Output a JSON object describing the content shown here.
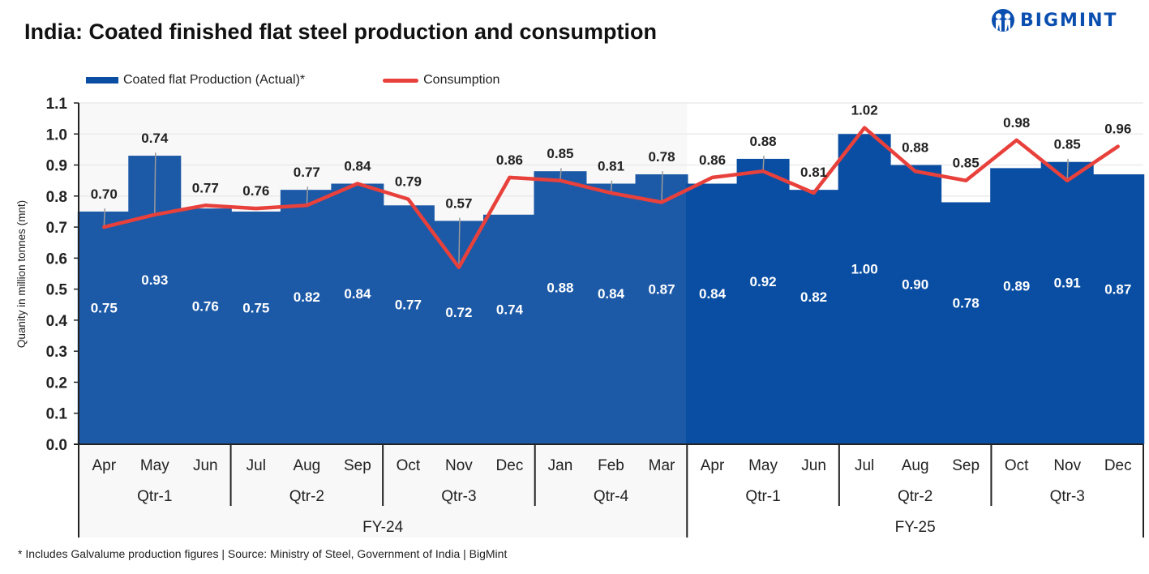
{
  "title": "India: Coated finished flat steel production and consumption",
  "logo": {
    "text": "BIGMINT",
    "icon": "bigmint-logo-icon"
  },
  "footnote": "* Includes Galvalume production figures | Source: Ministry of Steel, Government of India | BigMint",
  "colors": {
    "bar_fy24": "#1c59a7",
    "bar_fy25": "#0a4ea3",
    "line": "#e8413c",
    "fy24_bg": "#f8f8f8",
    "grid": "#ebebeb",
    "leader": "#9a9a9a"
  },
  "chart_data": {
    "type": "bar",
    "title": "India: Coated finished flat steel production and consumption",
    "xlabel": "",
    "ylabel": "Quanity in million tonnes (mnt)",
    "ylim": [
      0,
      1.1
    ],
    "yticks": [
      "0.0",
      "0.1",
      "0.2",
      "0.3",
      "0.4",
      "0.5",
      "0.6",
      "0.7",
      "0.8",
      "0.9",
      "1.0",
      "1.1"
    ],
    "grid": true,
    "legend_position": "top-left",
    "categories": [
      "Apr",
      "May",
      "Jun",
      "Jul",
      "Aug",
      "Sep",
      "Oct",
      "Nov",
      "Dec",
      "Jan",
      "Feb",
      "Mar",
      "Apr",
      "May",
      "Jun",
      "Jul",
      "Aug",
      "Sep",
      "Oct",
      "Nov",
      "Dec"
    ],
    "quarters": [
      {
        "label": "Qtr-1",
        "span": 3
      },
      {
        "label": "Qtr-2",
        "span": 3
      },
      {
        "label": "Qtr-3",
        "span": 3
      },
      {
        "label": "Qtr-4",
        "span": 3
      },
      {
        "label": "Qtr-1",
        "span": 3
      },
      {
        "label": "Qtr-2",
        "span": 3
      },
      {
        "label": "Qtr-3",
        "span": 3
      }
    ],
    "fiscal_years": [
      {
        "label": "FY-24",
        "span": 12
      },
      {
        "label": "FY-25",
        "span": 9
      }
    ],
    "series": [
      {
        "name": "Coated flat Production (Actual)*",
        "type": "bar",
        "values": [
          0.75,
          0.93,
          0.76,
          0.75,
          0.82,
          0.84,
          0.77,
          0.72,
          0.74,
          0.88,
          0.84,
          0.87,
          0.84,
          0.92,
          0.82,
          1.0,
          0.9,
          0.78,
          0.89,
          0.91,
          0.87
        ],
        "labels": [
          "0.75",
          "0.93",
          "0.76",
          "0.75",
          "0.82",
          "0.84",
          "0.77",
          "0.72",
          "0.74",
          "0.88",
          "0.84",
          "0.87",
          "0.84",
          "0.92",
          "0.82",
          "1.00",
          "0.90",
          "0.78",
          "0.89",
          "0.91",
          "0.87"
        ]
      },
      {
        "name": "Consumption",
        "type": "line",
        "values": [
          0.7,
          0.74,
          0.77,
          0.76,
          0.77,
          0.84,
          0.79,
          0.57,
          0.86,
          0.85,
          0.81,
          0.78,
          0.86,
          0.88,
          0.81,
          1.02,
          0.88,
          0.85,
          0.98,
          0.85,
          0.96
        ],
        "labels": [
          "0.70",
          "0.74",
          "0.77",
          "0.76",
          "0.77",
          "0.84",
          "0.79",
          "0.57",
          "0.86",
          "0.85",
          "0.81",
          "0.78",
          "0.86",
          "0.88",
          "0.81",
          "1.02",
          "0.88",
          "0.85",
          "0.98",
          "0.85",
          "0.96"
        ]
      }
    ]
  }
}
